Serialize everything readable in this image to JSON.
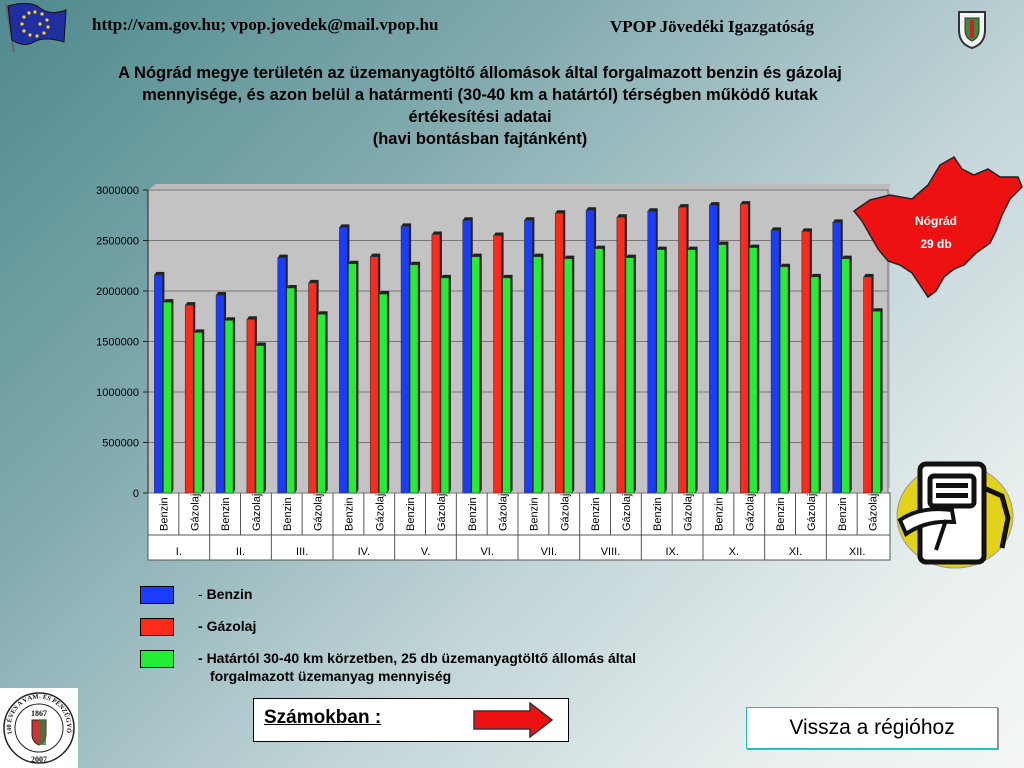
{
  "header": {
    "url_text": "http://vam.gov.hu; vpop.jovedek@mail.vpop.hu",
    "org_text": "VPOP Jövedéki Igazgatóság"
  },
  "title_lines": [
    "A Nógrád megye területén az üzemanyagtöltő állomások által forgalmazott benzin és gázolaj",
    "mennyisége, és azon belül a határmenti (30-40 km a határtól) térségben működő kutak",
    "értékesítési adatai",
    "(havi bontásban fajtánként)"
  ],
  "chart_data": {
    "type": "bar",
    "months": [
      "I.",
      "II.",
      "III.",
      "IV.",
      "V.",
      "VI.",
      "VII.",
      "VIII.",
      "IX.",
      "X.",
      "XI.",
      "XII."
    ],
    "sub_categories": [
      "Benzin",
      "Gázolaj"
    ],
    "ylim": [
      0,
      3000000
    ],
    "yticks": [
      "0",
      "500000",
      "1000000",
      "1500000",
      "2000000",
      "2500000",
      "3000000"
    ],
    "grid": true,
    "series": [
      {
        "name": "Benzin",
        "color": "#1a3cff",
        "values": [
          2160000,
          1960000,
          2330000,
          2630000,
          2640000,
          2700000,
          2700000,
          2800000,
          2790000,
          2850000,
          2600000,
          2680000
        ]
      },
      {
        "name": "Gázolaj",
        "color": "#ff2a1a",
        "values": [
          1860000,
          1720000,
          2080000,
          2340000,
          2560000,
          2550000,
          2770000,
          2730000,
          2830000,
          2860000,
          2590000,
          2140000
        ]
      },
      {
        "name": "Határtól 30-40 km körzetben, 25 db üzemanyagtöltő állomás által forgalmazott üzemanyag mennyiség",
        "color": "#22ee33",
        "benzin_values": [
          1890000,
          1710000,
          2030000,
          2270000,
          2260000,
          2340000,
          2340000,
          2420000,
          2410000,
          2460000,
          2240000,
          2320000
        ],
        "gazolaj_values": [
          1590000,
          1460000,
          1770000,
          1970000,
          2130000,
          2130000,
          2320000,
          2330000,
          2410000,
          2430000,
          2140000,
          1800000
        ]
      }
    ]
  },
  "legend": [
    {
      "text": "Benzin",
      "color": "#1a3cff"
    },
    {
      "text": "Gázolaj",
      "color": "#ff2a1a"
    },
    {
      "text": "Határtól 30-40 km körzetben, 25 db üzemanyagtöltő állomás által",
      "text2": "forgalmazott üzemanyag mennyiség",
      "color": "#22ee33"
    }
  ],
  "map": {
    "region": "Nógrád",
    "count": "29 db",
    "color": "#ee1111"
  },
  "numbers_link": {
    "label": "Számokban :"
  },
  "back_button": {
    "label": "Vissza a régióhoz"
  },
  "logo": {
    "text_arc": "140 ÉVES A VÁM- ÉS PÉNZÜGYŐRSÉG",
    "year_top": "1867",
    "year_bottom": "2007"
  }
}
